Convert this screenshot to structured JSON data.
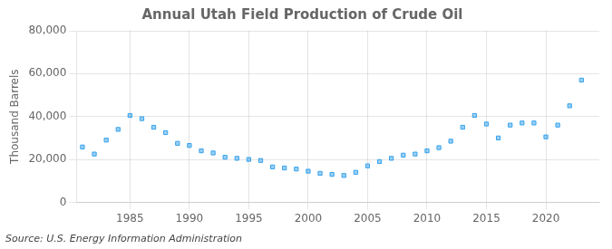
{
  "chart_data": {
    "type": "scatter",
    "title": "Annual Utah Field Production of Crude Oil",
    "ylabel": "Thousand Barrels",
    "source": "Source: U.S. Energy Information Administration",
    "marker": "square",
    "x": [
      1981,
      1982,
      1983,
      1984,
      1985,
      1986,
      1987,
      1988,
      1989,
      1990,
      1991,
      1992,
      1993,
      1994,
      1995,
      1996,
      1997,
      1998,
      1999,
      2000,
      2001,
      2002,
      2003,
      2004,
      2005,
      2006,
      2007,
      2008,
      2009,
      2010,
      2011,
      2012,
      2013,
      2014,
      2015,
      2016,
      2017,
      2018,
      2019,
      2020,
      2021,
      2022,
      2023
    ],
    "values": [
      25800,
      22500,
      29000,
      34000,
      40500,
      39000,
      35000,
      32500,
      27500,
      26500,
      24000,
      23000,
      21000,
      20500,
      20000,
      19500,
      16500,
      16000,
      15500,
      14500,
      13500,
      13000,
      12500,
      14000,
      17000,
      19000,
      20500,
      22000,
      22500,
      24000,
      25500,
      28500,
      35000,
      40500,
      36500,
      30000,
      36000,
      37000,
      37000,
      30500,
      36000,
      45000,
      57000
    ],
    "xlim": [
      1980.5,
      2024.5
    ],
    "xticks": [
      1985,
      1990,
      1995,
      2000,
      2005,
      2010,
      2015,
      2020
    ],
    "ylim": [
      0,
      80000
    ],
    "yticks": [
      0,
      {
        "value": 20000,
        "label": "20,000"
      },
      {
        "value": 40000,
        "label": "40,000"
      },
      {
        "value": 60000,
        "label": "60,000"
      },
      {
        "value": 80000,
        "label": "80,000"
      }
    ],
    "grid": true
  }
}
